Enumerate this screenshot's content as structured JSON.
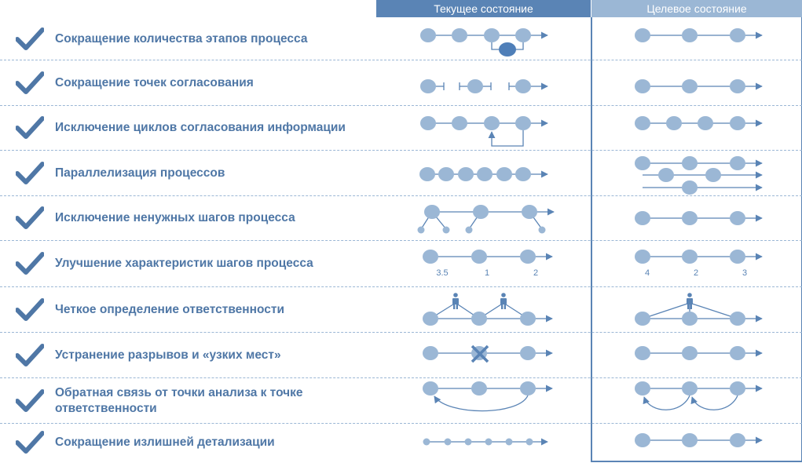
{
  "headers": {
    "current": "Текущее состояние",
    "target": "Целевое состояние"
  },
  "rows": [
    {
      "label": "Сокращение количества этапов процесса"
    },
    {
      "label": "Сокращение точек согласования"
    },
    {
      "label": "Исключение циклов согласования информации"
    },
    {
      "label": "Параллелизация процессов"
    },
    {
      "label": "Исключение ненужных шагов процесса"
    },
    {
      "label": "Улучшение характеристик шагов процесса"
    },
    {
      "label": "Четкое определение ответственности"
    },
    {
      "label": "Устранение разрывов и «узких мест»"
    },
    {
      "label": "Обратная связь от точки анализа к точке ответственности"
    },
    {
      "label": "Сокращение излишней детализации"
    }
  ],
  "step_values": {
    "current": [
      "3.5",
      "1",
      "2"
    ],
    "target": [
      "4",
      "2",
      "3"
    ]
  },
  "colors": {
    "node": "#9bb7d5",
    "node_dark": "#4f7fb8",
    "line": "#5a84b5",
    "check": "#4f77a6",
    "label": "#4f77a6",
    "header_current": "#5a84b5",
    "header_target": "#9bb7d5"
  }
}
